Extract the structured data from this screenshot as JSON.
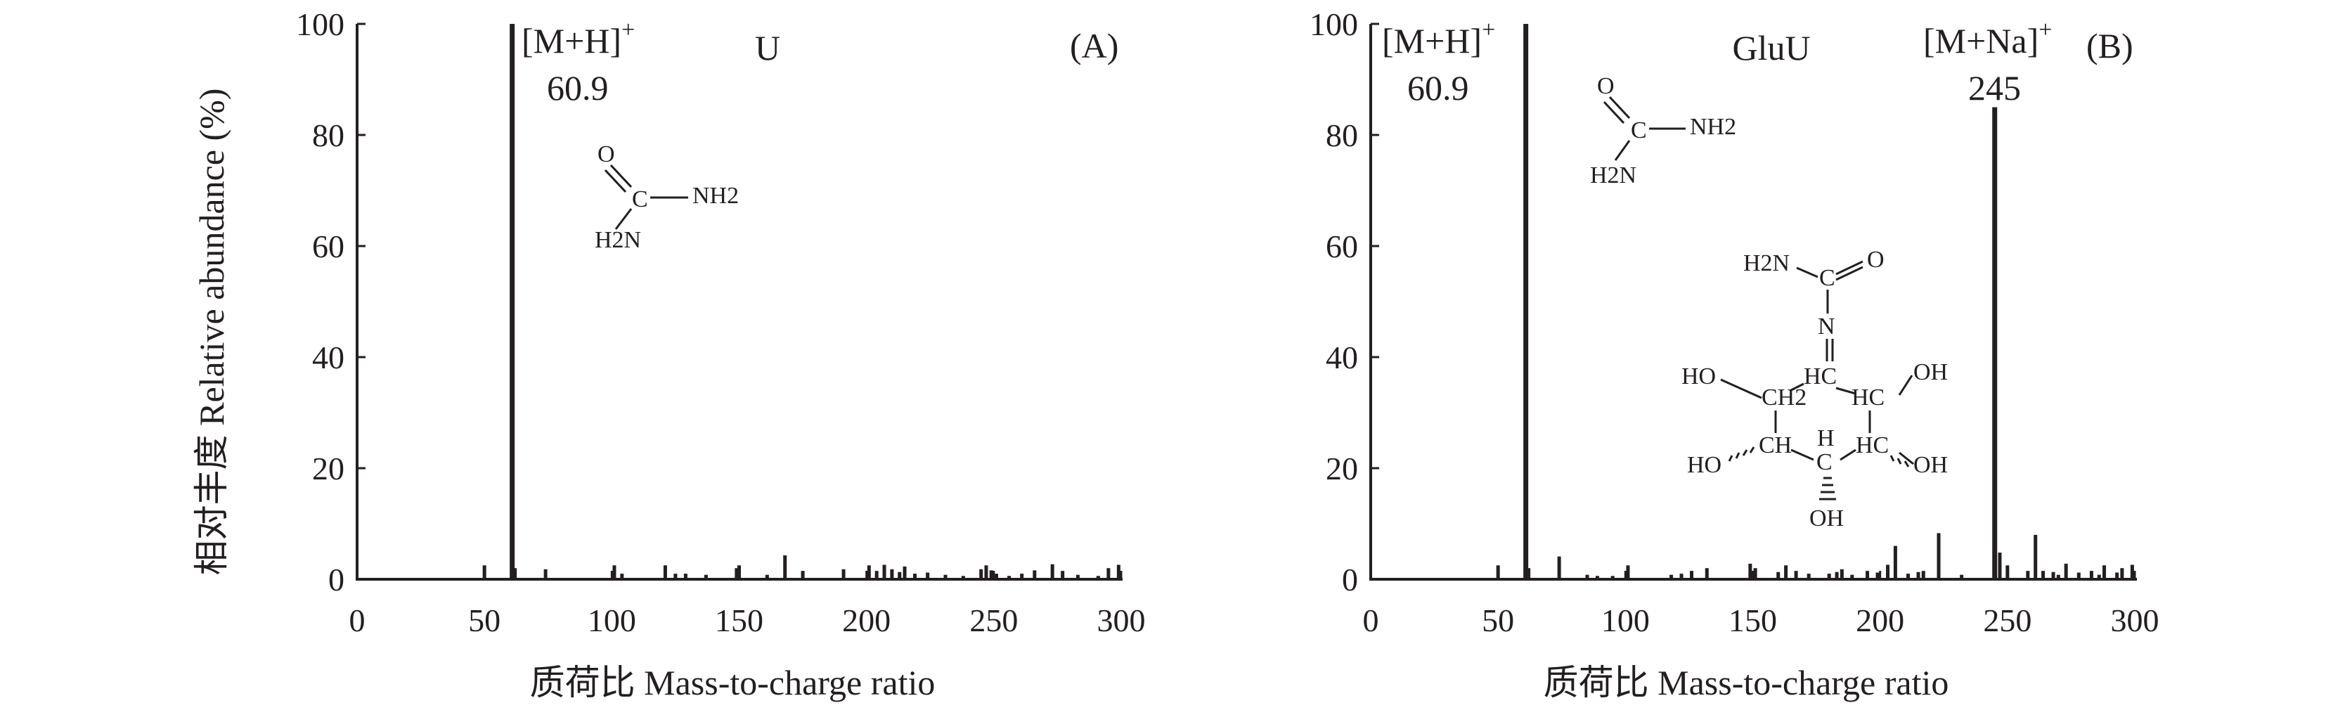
{
  "y_axis_title": "相对丰度 Relative abundance (%)",
  "colors": {
    "ink": "#231f20",
    "background": "#ffffff"
  },
  "chart_data": [
    {
      "type": "bar",
      "panel": "(A)",
      "compound": "U",
      "xlabel": "质荷比 Mass-to-charge ratio",
      "ylabel": "相对丰度 Relative abundance (%)",
      "xlim": [
        0,
        300
      ],
      "ylim": [
        0,
        100
      ],
      "xticks": [
        "0",
        "50",
        "100",
        "150",
        "200",
        "250",
        "300"
      ],
      "yticks": [
        "0",
        "20",
        "40",
        "60",
        "80",
        "100"
      ],
      "grid": false,
      "annotations": [
        {
          "ion": "[M+H]",
          "charge": "+",
          "mz_label": "60.9"
        }
      ],
      "structure": {
        "atoms": [
          "O",
          "C",
          "NH2",
          "H2N"
        ]
      },
      "peaks": [
        [
          50,
          2.5
        ],
        [
          60.9,
          100
        ],
        [
          62,
          2
        ],
        [
          74,
          1.8
        ],
        [
          101,
          2.5
        ],
        [
          104,
          1
        ],
        [
          121,
          2.5
        ],
        [
          125,
          1
        ],
        [
          129,
          1
        ],
        [
          137,
          0.8
        ],
        [
          149,
          2
        ],
        [
          150,
          2.5
        ],
        [
          161,
          0.8
        ],
        [
          168,
          4.3
        ],
        [
          175,
          1.5
        ],
        [
          191,
          1.8
        ],
        [
          201,
          2.5
        ],
        [
          204,
          1.5
        ],
        [
          207,
          2.6
        ],
        [
          210,
          1.8
        ],
        [
          213,
          1.3
        ],
        [
          215,
          2.3
        ],
        [
          219,
          1
        ],
        [
          224,
          1.2
        ],
        [
          231,
          0.8
        ],
        [
          238,
          0.6
        ],
        [
          245,
          1.8
        ],
        [
          247,
          2.5
        ],
        [
          249,
          1.6
        ],
        [
          251,
          1
        ],
        [
          256,
          0.6
        ],
        [
          261,
          1
        ],
        [
          266,
          1.6
        ],
        [
          273,
          2.7
        ],
        [
          277,
          1.5
        ],
        [
          283,
          0.8
        ],
        [
          291,
          0.6
        ],
        [
          295,
          2
        ],
        [
          299,
          2.6
        ]
      ]
    },
    {
      "type": "bar",
      "panel": "(B)",
      "compound": "GluU",
      "xlabel": "质荷比 Mass-to-charge ratio",
      "ylabel": "",
      "xlim": [
        0,
        300
      ],
      "ylim": [
        0,
        100
      ],
      "xticks": [
        "0",
        "50",
        "100",
        "150",
        "200",
        "250",
        "300"
      ],
      "yticks": [
        "0",
        "20",
        "40",
        "60",
        "80",
        "100"
      ],
      "grid": false,
      "annotations": [
        {
          "ion": "[M+H]",
          "charge": "+",
          "mz_label": "60.9"
        },
        {
          "ion": "[M+Na]",
          "charge": "+",
          "mz_label": "245"
        }
      ],
      "structure": {
        "atoms": [
          "O",
          "C",
          "NH2",
          "H2N"
        ],
        "atoms_glucosylurea": [
          "H2N",
          "C",
          "O",
          "N",
          "HC",
          "HO",
          "CH2",
          "HC",
          "OH",
          "HO",
          "CH",
          "H",
          "C",
          "HC",
          "OH",
          "OH"
        ]
      },
      "peaks": [
        [
          50,
          2.5
        ],
        [
          60.9,
          100
        ],
        [
          62,
          2
        ],
        [
          74,
          4.1
        ],
        [
          85,
          0.8
        ],
        [
          89,
          0.6
        ],
        [
          95,
          0.6
        ],
        [
          101,
          2.5
        ],
        [
          118,
          0.8
        ],
        [
          122,
          1
        ],
        [
          126,
          1.5
        ],
        [
          132,
          2
        ],
        [
          149,
          2.8
        ],
        [
          151,
          2
        ],
        [
          160,
          1.3
        ],
        [
          163,
          2.5
        ],
        [
          167,
          1.5
        ],
        [
          172,
          1
        ],
        [
          180,
          1
        ],
        [
          183,
          1.3
        ],
        [
          185,
          1.8
        ],
        [
          189,
          0.8
        ],
        [
          195,
          1.5
        ],
        [
          199,
          1.2
        ],
        [
          203,
          2.6
        ],
        [
          206,
          6
        ],
        [
          211,
          1
        ],
        [
          215,
          1.3
        ],
        [
          217,
          1.5
        ],
        [
          223,
          8.3
        ],
        [
          232,
          0.8
        ],
        [
          245,
          85
        ],
        [
          247,
          4.8
        ],
        [
          250,
          2.5
        ],
        [
          258,
          1.5
        ],
        [
          261,
          8
        ],
        [
          264,
          1.5
        ],
        [
          268,
          1.3
        ],
        [
          270,
          0.8
        ],
        [
          273,
          2.8
        ],
        [
          278,
          1.2
        ],
        [
          283,
          1.5
        ],
        [
          286,
          0.8
        ],
        [
          288,
          2.5
        ],
        [
          293,
          1.2
        ],
        [
          295,
          2
        ],
        [
          299,
          2.6
        ]
      ]
    }
  ]
}
